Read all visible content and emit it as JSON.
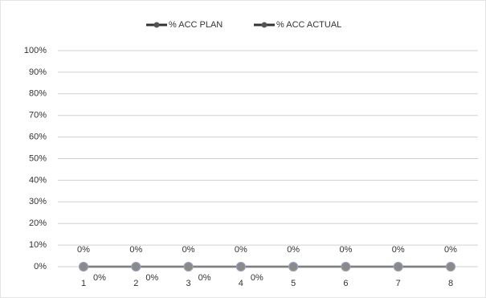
{
  "chart_data": {
    "type": "line",
    "categories": [
      "1",
      "2",
      "3",
      "4",
      "5",
      "6",
      "7",
      "8"
    ],
    "series": [
      {
        "name": "% ACC PLAN",
        "color": "#7f8fb0",
        "values": [
          0,
          0,
          0,
          0,
          0,
          0,
          0,
          0
        ],
        "value_labels": [
          "0%",
          "0%",
          "0%",
          "0%",
          "0%",
          "0%",
          "0%",
          "0%"
        ]
      },
      {
        "name": "% ACC ACTUAL",
        "color": "#808080",
        "values": [
          0,
          0,
          0,
          0,
          0,
          0,
          0,
          0
        ],
        "value_labels": [
          "0%",
          "0%",
          "0%",
          "0%",
          null,
          null,
          null,
          null
        ]
      }
    ],
    "ylim": [
      0,
      100
    ],
    "yticks": [
      {
        "value": 0,
        "label": "0%"
      },
      {
        "value": 10,
        "label": "10%"
      },
      {
        "value": 20,
        "label": "20%"
      },
      {
        "value": 30,
        "label": "30%"
      },
      {
        "value": 40,
        "label": "40%"
      },
      {
        "value": 50,
        "label": "50%"
      },
      {
        "value": 60,
        "label": "60%"
      },
      {
        "value": 70,
        "label": "70%"
      },
      {
        "value": 80,
        "label": "80%"
      },
      {
        "value": 90,
        "label": "90%"
      },
      {
        "value": 100,
        "label": "100%"
      }
    ],
    "grid": true
  }
}
